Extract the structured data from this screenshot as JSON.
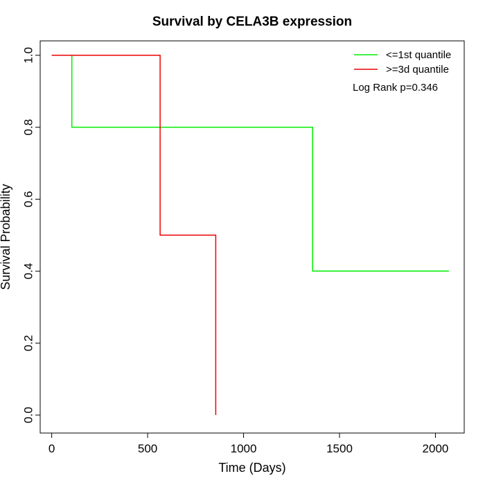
{
  "chart_data": {
    "type": "line",
    "title": "Survival by CELA3B expression",
    "xlabel": "Time (Days)",
    "ylabel": "Survival Probability",
    "xlim": [
      -60,
      2150
    ],
    "ylim": [
      -0.05,
      1.04
    ],
    "xticks": [
      0,
      500,
      1000,
      1500,
      2000
    ],
    "yticks": [
      0.0,
      0.2,
      0.4,
      0.6,
      0.8,
      1.0
    ],
    "xtick_labels": [
      "0",
      "500",
      "1000",
      "1500",
      "2000"
    ],
    "ytick_labels": [
      "0.0",
      "0.2",
      "0.4",
      "0.6",
      "0.8",
      "1.0"
    ],
    "grid": false,
    "legend_position": "top-right",
    "annotation": "Log Rank p=0.346",
    "series": [
      {
        "name": "<=1st quantile",
        "color": "#00ee00",
        "step": true,
        "x": [
          0,
          105,
          105,
          1360,
          1360,
          2070
        ],
        "y": [
          1.0,
          1.0,
          0.8,
          0.8,
          0.4,
          0.4
        ]
      },
      {
        "name": ">=3d quantile",
        "color": "#ee0000",
        "step": true,
        "x": [
          0,
          565,
          565,
          855,
          855
        ],
        "y": [
          1.0,
          1.0,
          0.5,
          0.5,
          0.0
        ]
      }
    ]
  }
}
